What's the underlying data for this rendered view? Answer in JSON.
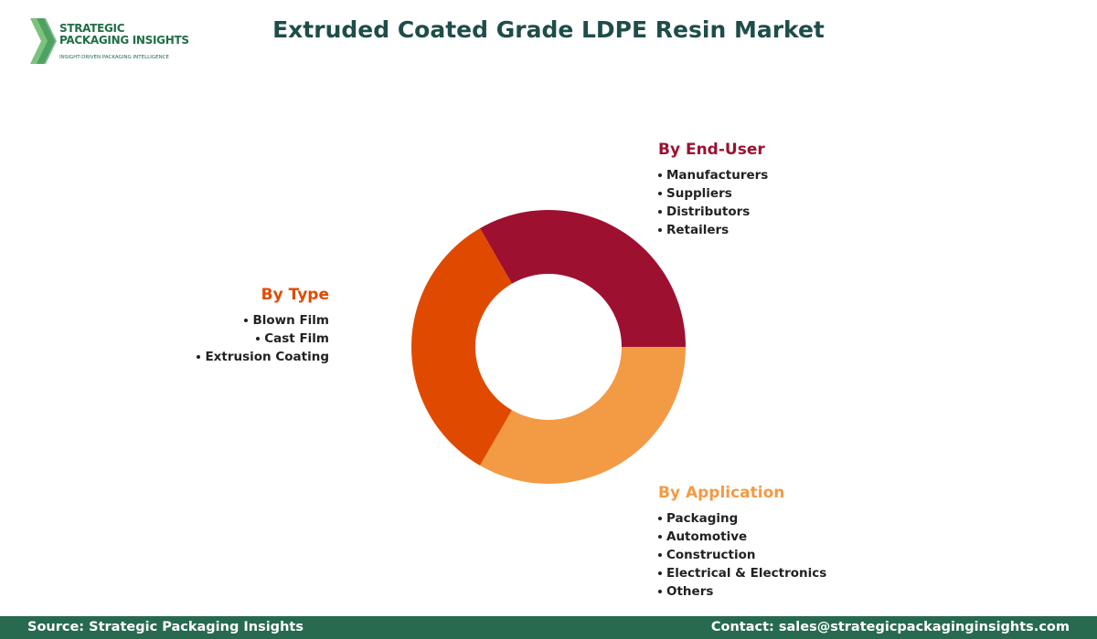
{
  "logo": {
    "line1": "STRATEGIC",
    "line2": "PACKAGING INSIGHTS",
    "tagline": "INSIGHT-DRIVEN PACKAGING INTELLIGENCE"
  },
  "title": "Extruded Coated Grade LDPE Resin Market",
  "segments": [
    {
      "heading": "By End-User",
      "items": [
        "Manufacturers",
        "Suppliers",
        "Distributors",
        "Retailers"
      ]
    },
    {
      "heading": "By Type",
      "items": [
        "Blown Film",
        "Cast Film",
        "Extrusion Coating"
      ]
    },
    {
      "heading": "By Application",
      "items": [
        "Packaging",
        "Automotive",
        "Construction",
        "Electrical & Electronics",
        "Others"
      ]
    }
  ],
  "footer": {
    "source": "Source: Strategic Packaging Insights",
    "contact": "Contact: sales@strategicpackaginginsights.com"
  }
}
